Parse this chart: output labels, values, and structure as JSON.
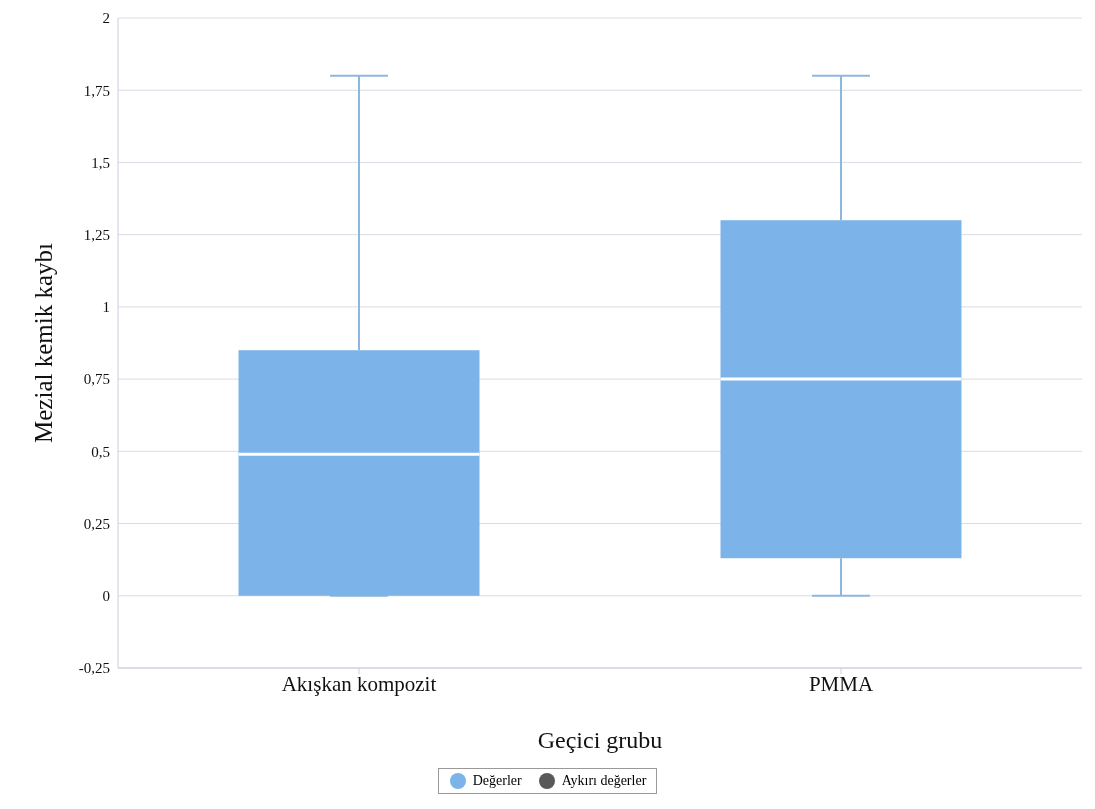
{
  "chart_data": {
    "type": "box",
    "xlabel": "Geçici grubu",
    "ylabel": "Mezial kemik kaybı",
    "categories": [
      "Akışkan kompozit",
      "PMMA"
    ],
    "series": [
      {
        "name": "Değerler",
        "color": "#7cb3e8",
        "boxes": [
          {
            "low": 0,
            "q1": 0,
            "median": 0.49,
            "q3": 0.85,
            "high": 1.8
          },
          {
            "low": 0,
            "q1": 0.13,
            "median": 0.75,
            "q3": 1.3,
            "high": 1.8
          }
        ]
      },
      {
        "name": "Aykırı değerler",
        "type": "scatter",
        "color": "#595959",
        "values": [
          null,
          null
        ]
      }
    ],
    "ylim": [
      -0.25,
      2
    ],
    "yticks": [
      {
        "value": -0.25,
        "label": "-0,25"
      },
      0,
      {
        "value": 0.25,
        "label": "0,25"
      },
      {
        "value": 0.5,
        "label": "0,5"
      },
      {
        "value": 0.75,
        "label": "0,75"
      },
      1,
      {
        "value": 1.25,
        "label": "1,25"
      },
      {
        "value": 1.5,
        "label": "1,5"
      },
      {
        "value": 1.75,
        "label": "1,75"
      },
      2
    ],
    "grid": "y",
    "legend": "bottom"
  }
}
